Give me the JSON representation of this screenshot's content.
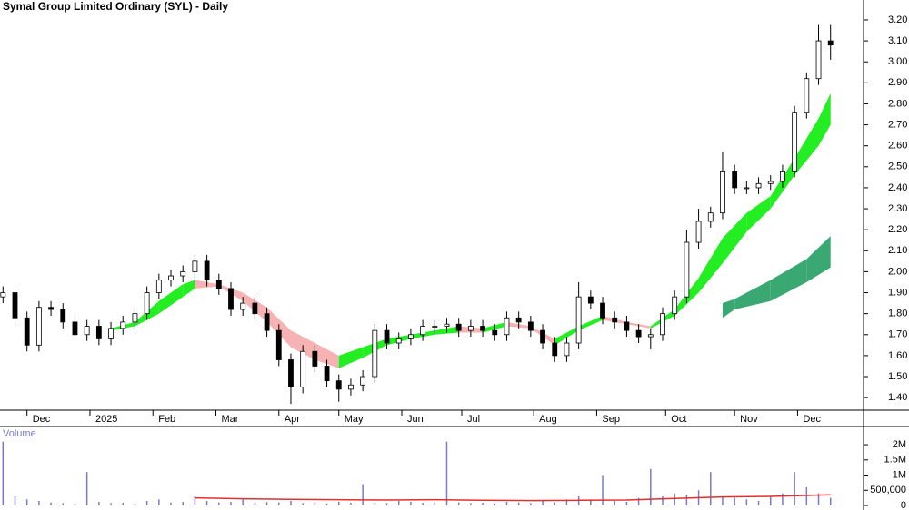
{
  "chart_data": [
    {
      "type": "candlestick",
      "title": "Symal Group Limited Ordinary (SYL) - Daily",
      "x": [
        0,
        4,
        8,
        12,
        16,
        20,
        24,
        28,
        32,
        36,
        40,
        44,
        48,
        52,
        56,
        60,
        64,
        68,
        72,
        76,
        80,
        84,
        88,
        92,
        96,
        100,
        104,
        108,
        112,
        116,
        120,
        124,
        128,
        132,
        136,
        140,
        144,
        148,
        152,
        156,
        160,
        164,
        168,
        172,
        176,
        180,
        184,
        188,
        192,
        196,
        200,
        204,
        208,
        212,
        216,
        220,
        224,
        228,
        232,
        236,
        240,
        244,
        248,
        252,
        256,
        260,
        264,
        268,
        272,
        276
      ],
      "open": [
        1.88,
        1.9,
        1.78,
        1.65,
        1.83,
        1.82,
        1.76,
        1.7,
        1.74,
        1.68,
        1.73,
        1.76,
        1.8,
        1.9,
        1.96,
        1.98,
        2.0,
        2.05,
        1.96,
        1.92,
        1.82,
        1.85,
        1.8,
        1.72,
        1.58,
        1.45,
        1.62,
        1.55,
        1.48,
        1.44,
        1.46,
        1.5,
        1.72,
        1.66,
        1.68,
        1.7,
        1.74,
        1.74,
        1.75,
        1.72,
        1.74,
        1.72,
        1.7,
        1.78,
        1.76,
        1.72,
        1.66,
        1.6,
        1.66,
        1.88,
        1.85,
        1.78,
        1.76,
        1.72,
        1.69,
        1.7,
        1.8,
        1.88,
        2.14,
        2.24,
        2.28,
        2.48,
        2.4,
        2.4,
        2.42,
        2.43,
        2.48,
        2.76,
        2.92,
        3.1
      ],
      "high": [
        1.93,
        1.93,
        1.81,
        1.86,
        1.86,
        1.85,
        1.79,
        1.77,
        1.77,
        1.76,
        1.79,
        1.83,
        1.93,
        1.99,
        2.01,
        2.03,
        2.08,
        2.08,
        1.99,
        1.95,
        1.88,
        1.88,
        1.83,
        1.75,
        1.61,
        1.65,
        1.65,
        1.58,
        1.51,
        1.49,
        1.53,
        1.75,
        1.75,
        1.71,
        1.73,
        1.77,
        1.77,
        1.78,
        1.78,
        1.77,
        1.77,
        1.75,
        1.81,
        1.81,
        1.79,
        1.75,
        1.69,
        1.69,
        1.95,
        1.91,
        1.88,
        1.81,
        1.79,
        1.75,
        1.73,
        1.83,
        1.91,
        2.2,
        2.3,
        2.31,
        2.57,
        2.51,
        2.43,
        2.45,
        2.46,
        2.51,
        2.79,
        2.95,
        3.18,
        3.18
      ],
      "low": [
        1.85,
        1.75,
        1.62,
        1.62,
        1.79,
        1.73,
        1.67,
        1.67,
        1.65,
        1.65,
        1.7,
        1.73,
        1.77,
        1.87,
        1.93,
        1.95,
        1.97,
        1.93,
        1.89,
        1.79,
        1.79,
        1.77,
        1.69,
        1.55,
        1.37,
        1.42,
        1.52,
        1.45,
        1.38,
        1.41,
        1.43,
        1.47,
        1.63,
        1.63,
        1.65,
        1.67,
        1.71,
        1.71,
        1.69,
        1.69,
        1.69,
        1.67,
        1.67,
        1.73,
        1.69,
        1.63,
        1.57,
        1.57,
        1.63,
        1.82,
        1.75,
        1.73,
        1.69,
        1.66,
        1.63,
        1.67,
        1.77,
        1.85,
        2.11,
        2.21,
        2.25,
        2.37,
        2.37,
        2.37,
        2.39,
        2.4,
        2.45,
        2.73,
        2.89,
        3.01
      ],
      "close": [
        1.9,
        1.78,
        1.65,
        1.83,
        1.82,
        1.76,
        1.7,
        1.74,
        1.68,
        1.73,
        1.76,
        1.8,
        1.9,
        1.96,
        1.98,
        2.0,
        2.05,
        1.96,
        1.92,
        1.82,
        1.85,
        1.8,
        1.72,
        1.58,
        1.45,
        1.62,
        1.55,
        1.48,
        1.44,
        1.46,
        1.5,
        1.72,
        1.66,
        1.68,
        1.7,
        1.74,
        1.74,
        1.75,
        1.72,
        1.74,
        1.72,
        1.7,
        1.78,
        1.76,
        1.72,
        1.66,
        1.6,
        1.66,
        1.88,
        1.85,
        1.78,
        1.76,
        1.72,
        1.69,
        1.7,
        1.8,
        1.88,
        2.14,
        2.24,
        2.28,
        2.48,
        2.4,
        2.4,
        2.42,
        2.43,
        2.48,
        2.76,
        2.92,
        3.1,
        3.08
      ],
      "up_color": "#ffffff",
      "down_color": "#000000",
      "ribbons": [
        {
          "x": [
            36,
            44,
            52,
            60,
            64,
            72,
            80,
            88,
            96,
            104,
            112,
            120,
            128,
            136,
            144,
            152,
            160,
            168,
            176,
            184,
            192,
            200,
            208,
            216,
            224,
            232,
            240,
            248,
            256,
            264,
            272,
            276
          ],
          "upper": [
            1.73,
            1.76,
            1.86,
            1.94,
            1.96,
            1.94,
            1.9,
            1.83,
            1.72,
            1.66,
            1.6,
            1.64,
            1.68,
            1.7,
            1.72,
            1.74,
            1.73,
            1.76,
            1.74,
            1.68,
            1.74,
            1.79,
            1.76,
            1.74,
            1.82,
            1.97,
            2.16,
            2.28,
            2.36,
            2.54,
            2.73,
            2.85
          ],
          "lower": [
            1.72,
            1.74,
            1.8,
            1.88,
            1.92,
            1.93,
            1.86,
            1.76,
            1.64,
            1.58,
            1.54,
            1.59,
            1.65,
            1.68,
            1.7,
            1.71,
            1.71,
            1.74,
            1.73,
            1.65,
            1.72,
            1.77,
            1.75,
            1.73,
            1.79,
            1.9,
            2.04,
            2.19,
            2.3,
            2.46,
            2.6,
            2.7
          ],
          "up_color": "#22ee22",
          "down_color": "#f7b3b3"
        },
        {
          "x": [
            240,
            244,
            256,
            268,
            276
          ],
          "upper": [
            1.85,
            1.87,
            1.96,
            2.06,
            2.17
          ],
          "lower": [
            1.78,
            1.82,
            1.86,
            1.95,
            2.02
          ],
          "up_color": "#3aa872",
          "down_color": "#f26a2a"
        }
      ],
      "xlim": [
        -1,
        287
      ],
      "ylim": [
        1.34,
        3.295
      ],
      "xticks": [
        {
          "value": 8,
          "label": "Dec"
        },
        {
          "value": 29,
          "label": "2025"
        },
        {
          "value": 50,
          "label": "Feb"
        },
        {
          "value": 71,
          "label": "Mar"
        },
        {
          "value": 92,
          "label": "Apr"
        },
        {
          "value": 112,
          "label": "May"
        },
        {
          "value": 133,
          "label": "Jun"
        },
        {
          "value": 153,
          "label": "Jul"
        },
        {
          "value": 177,
          "label": "Aug"
        },
        {
          "value": 198,
          "label": "Sep"
        },
        {
          "value": 221,
          "label": "Oct"
        },
        {
          "value": 244,
          "label": "Nov"
        },
        {
          "value": 265,
          "label": "Dec"
        }
      ],
      "yticks": [
        {
          "value": 1.4,
          "label": "1.40"
        },
        {
          "value": 1.5,
          "label": "1.50"
        },
        {
          "value": 1.6,
          "label": "1.60"
        },
        {
          "value": 1.7,
          "label": "1.70"
        },
        {
          "value": 1.8,
          "label": "1.80"
        },
        {
          "value": 1.9,
          "label": "1.90"
        },
        {
          "value": 2.0,
          "label": "2.00"
        },
        {
          "value": 2.1,
          "label": "2.10"
        },
        {
          "value": 2.2,
          "label": "2.20"
        },
        {
          "value": 2.3,
          "label": "2.30"
        },
        {
          "value": 2.4,
          "label": "2.40"
        },
        {
          "value": 2.5,
          "label": "2.50"
        },
        {
          "value": 2.6,
          "label": "2.60"
        },
        {
          "value": 2.7,
          "label": "2.70"
        },
        {
          "value": 2.8,
          "label": "2.80"
        },
        {
          "value": 2.9,
          "label": "2.90"
        },
        {
          "value": 3.0,
          "label": "3.00"
        },
        {
          "value": 3.1,
          "label": "3.10"
        },
        {
          "value": 3.2,
          "label": "3.20"
        }
      ]
    },
    {
      "type": "bar",
      "title": "Volume",
      "x": [
        0,
        4,
        8,
        12,
        16,
        20,
        24,
        28,
        32,
        36,
        40,
        44,
        48,
        52,
        56,
        60,
        64,
        68,
        72,
        76,
        80,
        84,
        88,
        92,
        96,
        100,
        104,
        108,
        112,
        116,
        120,
        124,
        128,
        132,
        136,
        140,
        144,
        148,
        152,
        156,
        160,
        164,
        168,
        172,
        176,
        180,
        184,
        188,
        192,
        196,
        200,
        204,
        208,
        212,
        216,
        220,
        224,
        228,
        232,
        236,
        240,
        244,
        248,
        252,
        256,
        260,
        264,
        268,
        272,
        276
      ],
      "values": [
        2100000,
        300000,
        200000,
        150000,
        100000,
        80000,
        60000,
        1100000,
        120000,
        80000,
        90000,
        60000,
        150000,
        200000,
        100000,
        120000,
        300000,
        150000,
        100000,
        120000,
        200000,
        90000,
        110000,
        100000,
        150000,
        80000,
        100000,
        70000,
        120000,
        90000,
        700000,
        100000,
        80000,
        150000,
        120000,
        90000,
        100000,
        2100000,
        100000,
        80000,
        90000,
        70000,
        120000,
        100000,
        80000,
        150000,
        100000,
        200000,
        300000,
        200000,
        1000000,
        150000,
        120000,
        250000,
        1200000,
        300000,
        400000,
        350000,
        500000,
        1100000,
        300000,
        250000,
        200000,
        150000,
        300000,
        400000,
        1100000,
        600000,
        400000,
        250000
      ],
      "color": "#7a7ac8",
      "average": {
        "x": [
          64,
          80,
          96,
          112,
          128,
          144,
          160,
          176,
          192,
          208,
          224,
          240,
          256,
          272,
          276
        ],
        "values": [
          250000,
          220000,
          200000,
          190000,
          180000,
          190000,
          170000,
          160000,
          170000,
          180000,
          230000,
          280000,
          300000,
          340000,
          350000
        ],
        "color": "#e03030"
      },
      "xlim": [
        -1,
        287
      ],
      "ylim": [
        0,
        2600000
      ],
      "yticks": [
        0,
        {
          "value": 500000,
          "label": "500,000"
        },
        {
          "value": 1000000,
          "label": "1M"
        },
        {
          "value": 1500000,
          "label": "1.5M"
        },
        {
          "value": 2000000,
          "label": "2M"
        }
      ]
    }
  ]
}
